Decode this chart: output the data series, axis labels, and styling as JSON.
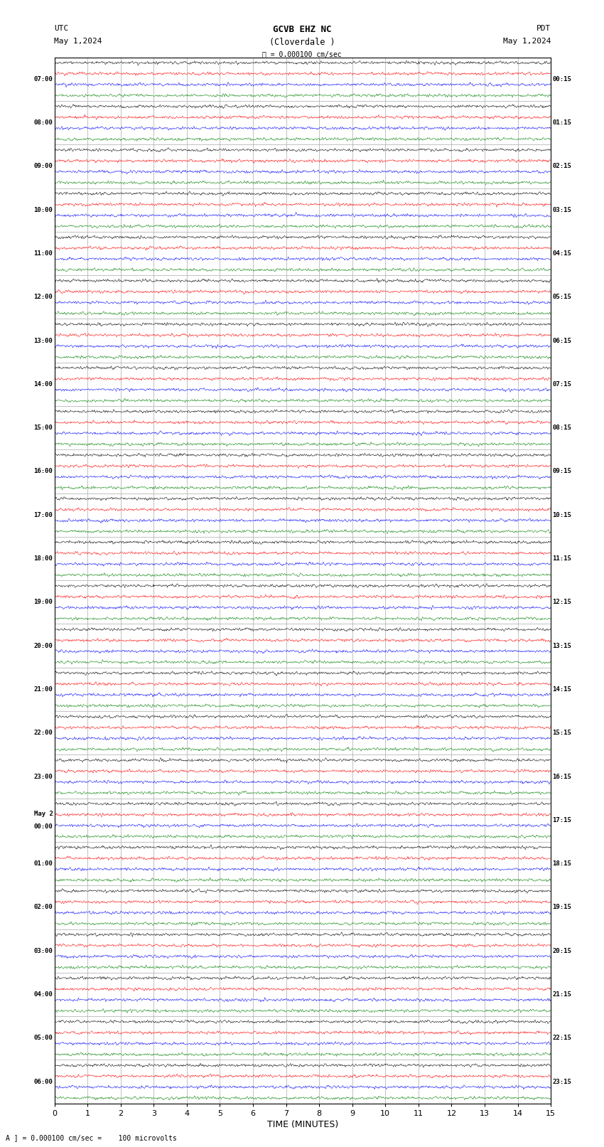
{
  "title_line1": "GCVB EHZ NC",
  "title_line2": "(Cloverdale )",
  "scale_label": "= 0.000100 cm/sec",
  "scale_label2": "A ] = 0.000100 cm/sec =    100 microvolts",
  "xlabel": "TIME (MINUTES)",
  "x_ticks": [
    0,
    1,
    2,
    3,
    4,
    5,
    6,
    7,
    8,
    9,
    10,
    11,
    12,
    13,
    14,
    15
  ],
  "background_color": "#ffffff",
  "trace_colors": [
    "black",
    "red",
    "blue",
    "green"
  ],
  "grid_color": "#aaaaaa",
  "num_rows": 24,
  "figwidth": 8.5,
  "figheight": 16.13,
  "left_times_utc": [
    "07:00",
    "08:00",
    "09:00",
    "10:00",
    "11:00",
    "12:00",
    "13:00",
    "14:00",
    "15:00",
    "16:00",
    "17:00",
    "18:00",
    "19:00",
    "20:00",
    "21:00",
    "22:00",
    "23:00",
    "May 2\n00:00",
    "01:00",
    "02:00",
    "03:00",
    "04:00",
    "05:00",
    "06:00"
  ],
  "right_times_pdt": [
    "00:15",
    "01:15",
    "02:15",
    "03:15",
    "04:15",
    "05:15",
    "06:15",
    "07:15",
    "08:15",
    "09:15",
    "10:15",
    "11:15",
    "12:15",
    "13:15",
    "14:15",
    "15:15",
    "16:15",
    "17:15",
    "18:15",
    "19:15",
    "20:15",
    "21:15",
    "22:15",
    "23:15"
  ],
  "trace_amplitude": 0.06,
  "traces_per_row": 4,
  "n_points": 2000,
  "x_max": 15.0
}
